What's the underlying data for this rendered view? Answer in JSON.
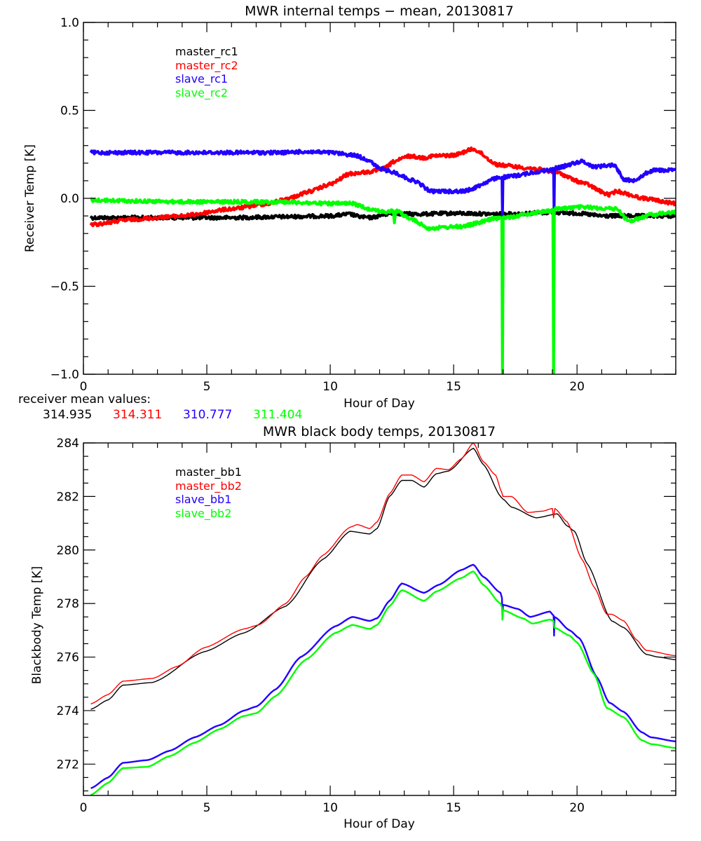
{
  "colors": {
    "black": "#000000",
    "red": "#ff0000",
    "blue": "#2200ff",
    "green": "#00ff00"
  },
  "receiver_summary": {
    "label": "receiver mean values:",
    "values": [
      {
        "name": "master_rc1",
        "value": "314.935",
        "color": "#000000"
      },
      {
        "name": "master_rc2",
        "value": "314.311",
        "color": "#ff0000"
      },
      {
        "name": "slave_rc1",
        "value": "310.777",
        "color": "#2200ff"
      },
      {
        "name": "slave_rc2",
        "value": "311.404",
        "color": "#00ff00"
      }
    ]
  },
  "chart_data": [
    {
      "type": "line",
      "title": "MWR internal temps − mean, 20130817",
      "xlabel": "Hour of Day",
      "ylabel": "Receiver Temp [K]",
      "xlim": [
        0,
        24
      ],
      "ylim": [
        -1.0,
        1.0
      ],
      "xticks": [
        0,
        5,
        10,
        15,
        20
      ],
      "xtick_labels": [
        "0",
        "5",
        "10",
        "15",
        "20"
      ],
      "x_minor_step": 1,
      "yticks": [
        -1.0,
        -0.5,
        0.0,
        0.5,
        1.0
      ],
      "ytick_labels": [
        "−1.0",
        "−0.5",
        "0.0",
        "0.5",
        "1.0"
      ],
      "y_minor_step": 0.1,
      "grid": false,
      "legend_position": "top-left",
      "style": "noisy",
      "series": [
        {
          "name": "master_rc1",
          "color": "#000000",
          "x": [
            0.3,
            2,
            4,
            6,
            8,
            10,
            10.8,
            11.2,
            11.6,
            12.5,
            13.5,
            15,
            17,
            19,
            20,
            21,
            22,
            23,
            24
          ],
          "y": [
            -0.11,
            -0.11,
            -0.11,
            -0.11,
            -0.105,
            -0.1,
            -0.09,
            -0.105,
            -0.11,
            -0.085,
            -0.09,
            -0.085,
            -0.09,
            -0.08,
            -0.085,
            -0.1,
            -0.1,
            -0.1,
            -0.1
          ]
        },
        {
          "name": "master_rc2",
          "color": "#ff0000",
          "x": [
            0.3,
            2,
            4,
            6,
            7.5,
            8.3,
            9.2,
            10,
            10.8,
            11.6,
            12.2,
            12.6,
            13.2,
            13.8,
            14.1,
            15,
            15.8,
            16.8,
            18.2,
            19.1,
            20.2,
            21.3,
            21.6,
            22.7,
            24
          ],
          "y": [
            -0.15,
            -0.12,
            -0.1,
            -0.06,
            -0.03,
            0.0,
            0.04,
            0.08,
            0.14,
            0.15,
            0.17,
            0.21,
            0.24,
            0.23,
            0.24,
            0.245,
            0.28,
            0.19,
            0.17,
            0.15,
            0.09,
            0.02,
            0.04,
            0.0,
            -0.03
          ]
        },
        {
          "name": "slave_rc1",
          "color": "#2200ff",
          "x": [
            0.3,
            2,
            4,
            6,
            8,
            9,
            10,
            11,
            11.5,
            12,
            12.5,
            13.4,
            14.1,
            15.4,
            16.9,
            16.96,
            16.98,
            17.0,
            18.9,
            19.05,
            19.07,
            19.09,
            20.2,
            20.7,
            21.5,
            21.9,
            22.2,
            23.1,
            24
          ],
          "y": [
            0.26,
            0.26,
            0.26,
            0.26,
            0.26,
            0.265,
            0.26,
            0.245,
            0.22,
            0.17,
            0.15,
            0.1,
            0.04,
            0.04,
            0.12,
            0.12,
            -0.1,
            0.12,
            0.16,
            0.17,
            -0.08,
            0.17,
            0.21,
            0.18,
            0.19,
            0.11,
            0.1,
            0.16,
            0.16
          ]
        },
        {
          "name": "slave_rc2",
          "color": "#00ff00",
          "x": [
            0.3,
            2,
            4,
            6,
            8,
            10,
            10.9,
            11.6,
            12.3,
            12.55,
            12.6,
            12.65,
            13.3,
            14.0,
            15.3,
            16.9,
            16.95,
            16.98,
            17.01,
            18.95,
            19.02,
            19.05,
            19.08,
            20.2,
            21.6,
            22.1,
            23.1,
            24
          ],
          "y": [
            -0.01,
            -0.015,
            -0.02,
            -0.02,
            -0.02,
            -0.03,
            -0.03,
            -0.06,
            -0.08,
            -0.07,
            -0.14,
            -0.07,
            -0.12,
            -0.17,
            -0.16,
            -0.11,
            -0.11,
            -1.05,
            -0.11,
            -0.07,
            -0.07,
            -1.05,
            -0.06,
            -0.05,
            -0.06,
            -0.13,
            -0.09,
            -0.08
          ]
        }
      ]
    },
    {
      "type": "line",
      "title": "MWR black body temps, 20130817",
      "xlabel": "Hour of Day",
      "ylabel": "Blackbody Temp [K]",
      "xlim": [
        0,
        24
      ],
      "ylim": [
        270.83,
        284.0
      ],
      "xticks": [
        0,
        5,
        10,
        15,
        20
      ],
      "xtick_labels": [
        "0",
        "5",
        "10",
        "15",
        "20"
      ],
      "x_minor_step": 1,
      "yticks": [
        272,
        274,
        276,
        278,
        280,
        282,
        284
      ],
      "ytick_labels": [
        "272",
        "274",
        "276",
        "278",
        "280",
        "282",
        "284"
      ],
      "y_minor_step": 0.5,
      "grid": false,
      "legend_position": "top-left",
      "style": "smooth",
      "series": [
        {
          "name": "master_bb1",
          "color": "#000000",
          "x": [
            0.3,
            1.0,
            1.6,
            2.8,
            4.9,
            6.5,
            8.2,
            9.7,
            10.8,
            11.6,
            11.9,
            12.4,
            12.9,
            13.3,
            13.8,
            14.3,
            14.8,
            15.8,
            16.2,
            16.95,
            17.0,
            17.35,
            18.35,
            19.2,
            19.6,
            19.9,
            20.4,
            21.4,
            21.9,
            22.8,
            23.3,
            24
          ],
          "y": [
            274.05,
            274.4,
            274.95,
            275.05,
            276.2,
            276.9,
            277.9,
            279.65,
            280.7,
            280.6,
            280.8,
            282.0,
            282.6,
            282.6,
            282.35,
            282.85,
            282.95,
            283.8,
            283.2,
            281.95,
            281.9,
            281.6,
            281.2,
            281.35,
            280.9,
            280.7,
            279.5,
            277.35,
            277.1,
            276.1,
            276.0,
            275.9
          ]
        },
        {
          "name": "master_bb2",
          "color": "#ff0000",
          "x": [
            0.3,
            1.0,
            1.6,
            2.8,
            3.8,
            4.9,
            6.5,
            7.1,
            8.2,
            9.0,
            9.7,
            10.8,
            11.1,
            11.6,
            11.9,
            12.4,
            12.9,
            13.3,
            13.8,
            14.3,
            14.8,
            15.3,
            15.8,
            16.2,
            16.7,
            16.95,
            17.0,
            17.35,
            18.0,
            18.6,
            19.0,
            19.05,
            19.1,
            19.6,
            20.2,
            20.7,
            21.2,
            21.4,
            21.9,
            22.4,
            22.8,
            24
          ],
          "y": [
            274.25,
            274.6,
            275.1,
            275.2,
            275.65,
            276.35,
            277.05,
            277.2,
            278.0,
            279.0,
            279.8,
            280.85,
            280.95,
            280.8,
            281.05,
            282.1,
            282.8,
            282.8,
            282.55,
            283.05,
            283.0,
            283.4,
            284.0,
            283.3,
            282.8,
            282.15,
            282.0,
            282.0,
            281.4,
            281.45,
            281.55,
            281.2,
            281.55,
            281.05,
            279.65,
            278.6,
            277.6,
            277.6,
            277.35,
            276.65,
            276.25,
            276.05
          ]
        },
        {
          "name": "slave_bb1",
          "color": "#2200ff",
          "x": [
            0.3,
            1.0,
            1.6,
            2.6,
            3.5,
            4.5,
            5.5,
            6.5,
            7.0,
            7.8,
            8.8,
            10.2,
            10.9,
            11.6,
            11.9,
            12.4,
            12.9,
            13.8,
            14.4,
            15.3,
            15.8,
            16.2,
            16.9,
            16.96,
            16.98,
            17.0,
            17.6,
            18.1,
            18.9,
            19.05,
            19.07,
            19.09,
            19.7,
            20.1,
            20.8,
            21.3,
            21.9,
            22.6,
            23.0,
            24
          ],
          "y": [
            271.1,
            271.5,
            272.05,
            272.15,
            272.5,
            273.0,
            273.45,
            274.0,
            274.15,
            274.8,
            276.0,
            277.15,
            277.5,
            277.35,
            277.45,
            278.1,
            278.75,
            278.4,
            278.7,
            279.25,
            279.45,
            279.0,
            278.4,
            278.2,
            277.4,
            277.95,
            277.8,
            277.5,
            277.7,
            277.55,
            276.8,
            277.5,
            277.0,
            276.7,
            275.25,
            274.3,
            273.95,
            273.2,
            273.0,
            272.85
          ]
        },
        {
          "name": "slave_bb2",
          "color": "#00ff00",
          "x": [
            0.3,
            1.0,
            1.6,
            2.6,
            3.5,
            4.5,
            5.5,
            6.5,
            7.0,
            7.8,
            9.0,
            10.2,
            10.9,
            11.6,
            11.9,
            12.4,
            12.9,
            13.8,
            14.3,
            15.3,
            15.8,
            16.2,
            16.9,
            16.96,
            16.98,
            17.0,
            17.8,
            18.2,
            18.9,
            19.05,
            19.08,
            19.7,
            20.0,
            20.7,
            21.2,
            21.9,
            22.6,
            23.0,
            24
          ],
          "y": [
            270.85,
            271.3,
            271.85,
            271.9,
            272.3,
            272.8,
            273.3,
            273.8,
            273.9,
            274.55,
            275.9,
            276.9,
            277.2,
            277.05,
            277.2,
            277.9,
            278.5,
            278.1,
            278.45,
            278.95,
            279.2,
            278.7,
            278.0,
            277.85,
            277.4,
            277.75,
            277.45,
            277.25,
            277.4,
            277.35,
            277.1,
            276.8,
            276.55,
            275.35,
            274.1,
            273.75,
            272.9,
            272.75,
            272.6
          ]
        }
      ]
    }
  ]
}
